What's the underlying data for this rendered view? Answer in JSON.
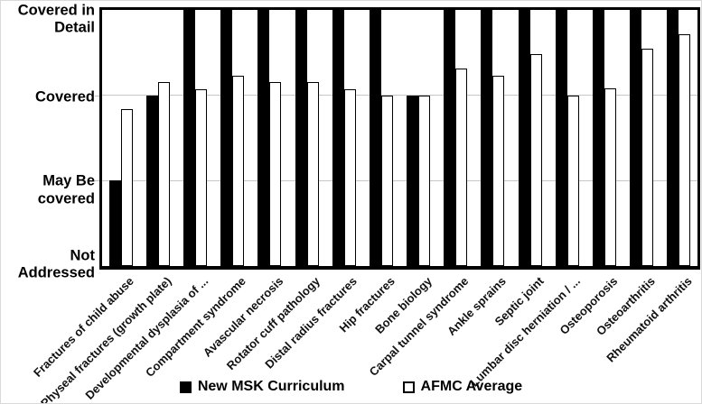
{
  "chart_data": {
    "type": "bar",
    "title": "",
    "xlabel": "",
    "ylabel": "",
    "categories": [
      "Fractures of child abuse",
      "Physeal fractures (growth plate)",
      "Developmental dysplasia of ...",
      "Compartment syndrome",
      "Avascular necrosis",
      "Rotator cuff pathology",
      "Distal radius fractures",
      "Hip fractures",
      "Bone biology",
      "Carpal tunnel syndrome",
      "Ankle sprains",
      "Septic joint",
      "Lumbar disc herniation / ...",
      "Osteoporosis",
      "Osteoarthritis",
      "Rheumatoid arthritis"
    ],
    "series": [
      {
        "name": "New MSK Curriculum",
        "fill": "#000000",
        "values": [
          1.0,
          2.0,
          3.0,
          3.0,
          3.0,
          3.0,
          3.0,
          3.0,
          2.0,
          3.0,
          3.0,
          3.0,
          3.0,
          3.0,
          3.0,
          3.0
        ]
      },
      {
        "name": "AFMC Average",
        "fill": "#ffffff",
        "values": [
          1.84,
          2.15,
          2.07,
          2.23,
          2.15,
          2.15,
          2.07,
          2.0,
          2.0,
          2.31,
          2.23,
          2.48,
          2.0,
          2.08,
          2.55,
          2.72
        ]
      }
    ],
    "y_axis": {
      "range": [
        0,
        3
      ],
      "ticks": [
        {
          "value": 3,
          "label_lines": [
            "Covered in",
            "Detail"
          ]
        },
        {
          "value": 2,
          "label_lines": [
            "Covered"
          ]
        },
        {
          "value": 1,
          "label_lines": [
            "May Be",
            "covered"
          ]
        },
        {
          "value": 0,
          "label_lines": [
            "Not Addressed"
          ]
        }
      ]
    },
    "gridlines": [
      1,
      2
    ],
    "grid": "horizontal",
    "legend_position": "bottom",
    "x_label_rotation_deg": 45
  },
  "legend": {
    "items": [
      {
        "label": "New MSK Curriculum",
        "swatch": "black-filled-square"
      },
      {
        "label": "AFMC Average",
        "swatch": "white-outlined-square"
      }
    ]
  },
  "colors": {
    "bar_fill_black": "#000000",
    "bar_fill_white": "#ffffff",
    "bar_outline": "#000000",
    "gridline": "#c6c6c6",
    "axis_frame": "#000000",
    "background": "#ffffff"
  }
}
